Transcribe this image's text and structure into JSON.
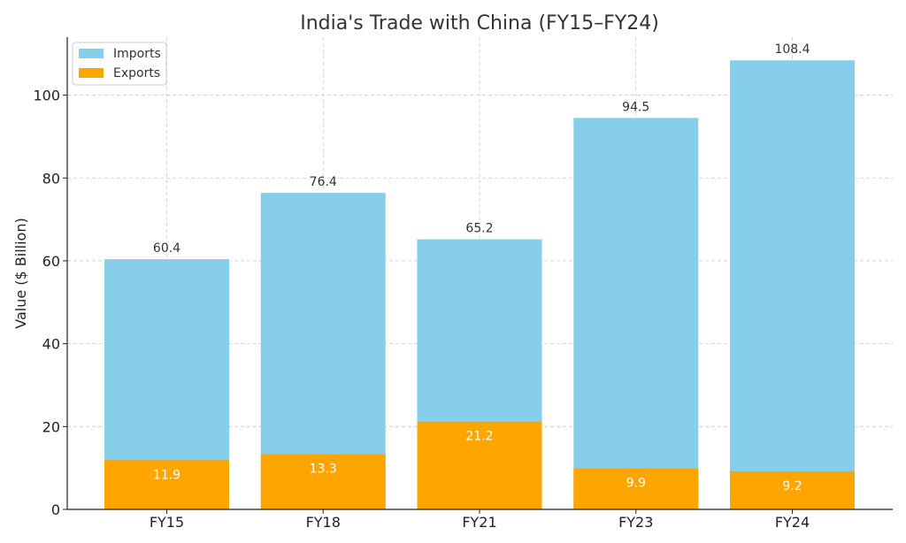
{
  "chart_data": {
    "type": "bar",
    "stacked": false,
    "title": "India's Trade with China (FY15–FY24)",
    "xlabel": "",
    "ylabel": "Value ($ Billion)",
    "categories": [
      "FY15",
      "FY18",
      "FY21",
      "FY23",
      "FY24"
    ],
    "ylim": [
      0,
      114
    ],
    "yticks": [
      0,
      20,
      40,
      60,
      80,
      100
    ],
    "grid": true,
    "legend": "top-left",
    "series": [
      {
        "name": "Imports",
        "values": [
          60.4,
          76.4,
          65.2,
          94.5,
          108.4
        ],
        "color": "#87CEEB",
        "labels": [
          "60.4",
          "76.4",
          "65.2",
          "94.5",
          "108.4"
        ]
      },
      {
        "name": "Exports",
        "values": [
          11.9,
          13.3,
          21.2,
          9.9,
          9.2
        ],
        "color": "#FFA500",
        "labels": [
          "11.9",
          "13.3",
          "21.2",
          "9.9",
          "9.2"
        ]
      }
    ]
  }
}
